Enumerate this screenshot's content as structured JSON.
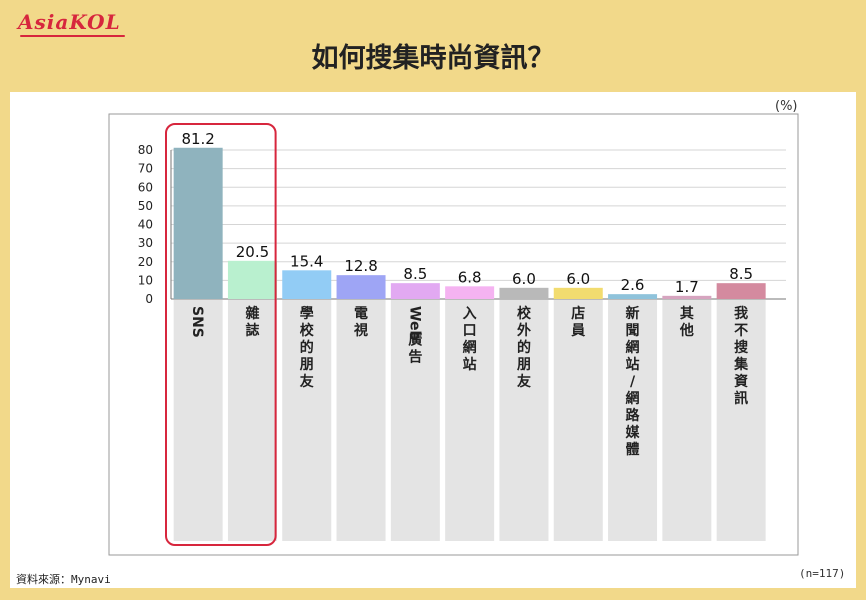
{
  "brand": "AsiaKOL",
  "title": "如何搜集時尚資訊？",
  "unit": "(%)",
  "sample_size": "(n=117)",
  "source": "資料來源：Mynavi",
  "chart_data": {
    "type": "bar",
    "title": "如何搜集時尚資訊？",
    "xlabel": "",
    "ylabel": "",
    "unit": "(%)",
    "ylim": [
      0,
      80
    ],
    "yticks": [
      0,
      10,
      20,
      30,
      40,
      50,
      60,
      70,
      80
    ],
    "grid": true,
    "categories": [
      "SNS",
      "雜誌",
      "學校的朋友",
      "電視",
      "Web廣告",
      "入口網站",
      "校外的朋友",
      "店員",
      "新聞網站/網路媒體",
      "其他",
      "我不搜集資訊"
    ],
    "values": [
      81.2,
      20.5,
      15.4,
      12.8,
      8.5,
      6.8,
      6.0,
      6.0,
      2.6,
      1.7,
      8.5
    ],
    "value_labels": [
      "81.2",
      "20.5",
      "15.4",
      "12.8",
      "8.5",
      "6.8",
      "6.0",
      "6.0",
      "2.6",
      "1.7",
      "8.5"
    ],
    "colors": [
      "#8fb3be",
      "#b9f0cf",
      "#92ccf5",
      "#9ea5f5",
      "#e2a9f2",
      "#f5b3f1",
      "#b9b9b9",
      "#f2dc6f",
      "#8fc3db",
      "#d6a4bf",
      "#d48a9f"
    ],
    "highlight": {
      "categories": [
        "SNS",
        "雜誌"
      ],
      "color": "#d7263d"
    }
  }
}
